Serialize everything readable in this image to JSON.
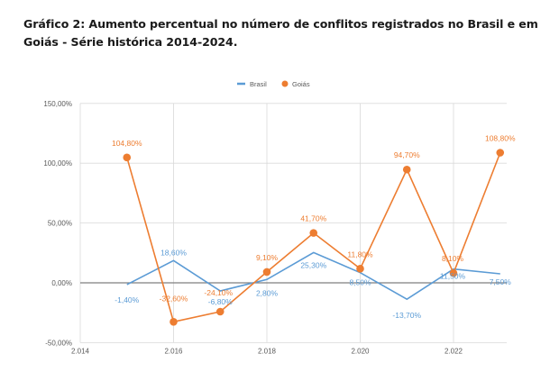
{
  "title": "Gráfico 2: Aumento percentual no número de conflitos registrados no Brasil e em Goiás - Série histórica 2014-2024.",
  "chart_data": {
    "type": "line",
    "title": "Gráfico 2: Aumento percentual no número de conflitos registrados no Brasil e em Goiás - Série histórica 2014-2024.",
    "xlabel": "",
    "ylabel": "",
    "x": [
      2015,
      2016,
      2017,
      2018,
      2019,
      2020,
      2021,
      2022,
      2023
    ],
    "xlim": [
      2014,
      2023.6
    ],
    "ylim": [
      -50,
      150
    ],
    "x_ticks": [
      2014,
      2016,
      2018,
      2020,
      2022
    ],
    "x_tick_labels": [
      "2.014",
      "2.016",
      "2.018",
      "2.020",
      "2.022"
    ],
    "y_ticks": [
      -50,
      0,
      50,
      100,
      150
    ],
    "y_tick_labels": [
      "-50,00%",
      "0,00%",
      "50,00%",
      "100,00%",
      "150,00%"
    ],
    "grid": true,
    "legend": "top-center",
    "series": [
      {
        "name": "Brasil",
        "color": "#5b9bd5",
        "marker": "none",
        "values": [
          -1.4,
          18.6,
          -6.8,
          2.8,
          25.3,
          8.5,
          -13.7,
          11.5,
          7.5
        ],
        "labels": [
          "-1,40%",
          "18,60%",
          "-6,80%",
          "2,80%",
          "25,30%",
          "8,50%",
          "-13,70%",
          "11,50%",
          "7,50%"
        ]
      },
      {
        "name": "Goiás",
        "color": "#ed7d31",
        "marker": "circle",
        "values": [
          104.8,
          -32.6,
          -24.1,
          9.1,
          41.7,
          11.8,
          94.7,
          8.1,
          108.8
        ],
        "labels": [
          "104,80%",
          "-32,60%",
          "-24,10%",
          "9,10%",
          "41,70%",
          "11,80%",
          "94,70%",
          "8,10%",
          "108,80%"
        ]
      }
    ]
  }
}
